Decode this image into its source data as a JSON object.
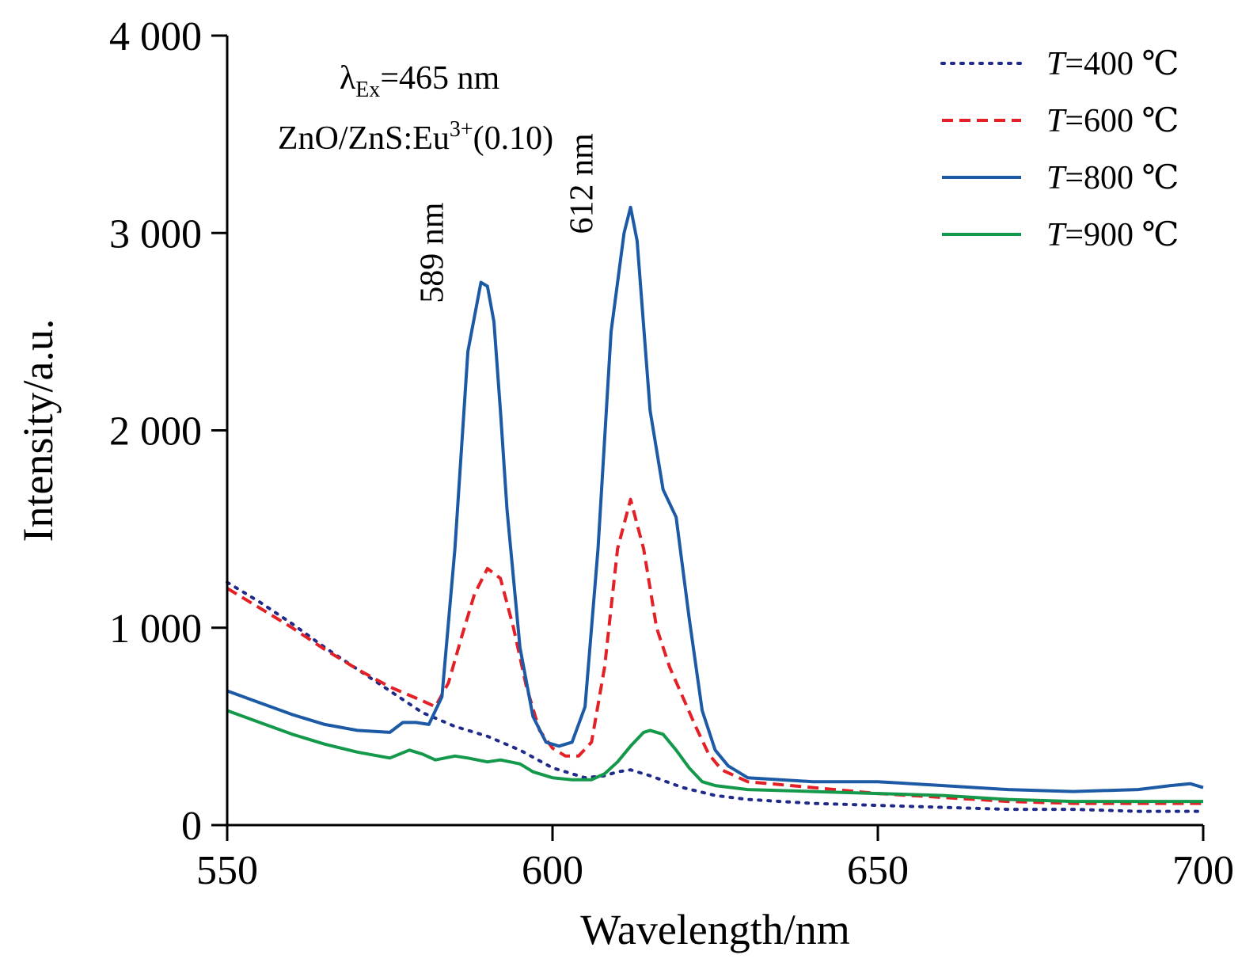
{
  "chart_data": {
    "type": "line",
    "title": "",
    "xlabel": "Wavelength/nm",
    "ylabel": "Intensity/a.u.",
    "xlim": [
      550,
      700
    ],
    "ylim": [
      0,
      4000
    ],
    "xticks": [
      550,
      600,
      650,
      700
    ],
    "xtick_labels": [
      "550",
      "600",
      "650",
      "700"
    ],
    "yticks": [
      0,
      1000,
      2000,
      3000,
      4000
    ],
    "ytick_labels": [
      "0",
      "1 000",
      "2 000",
      "3 000",
      "4 000"
    ],
    "grid": false,
    "legend_position": "top-right",
    "annotations": {
      "excitation": {
        "main": "λ",
        "sub": "Ex",
        "rest": "=465 nm"
      },
      "sample": {
        "main": "ZnO/ZnS:Eu",
        "sup": "3+",
        "rest": "(0.10)"
      },
      "peaks": [
        {
          "text": "589 nm",
          "x": 589,
          "y": 2900
        },
        {
          "text": "612 nm",
          "x": 612,
          "y": 3250
        }
      ]
    },
    "series": [
      {
        "name": "T=400 ℃",
        "legend_var": "T",
        "legend_rest": "=400 ℃",
        "color": "#1f2a8a",
        "style": "dotted",
        "x": [
          550,
          555,
          560,
          565,
          570,
          575,
          580,
          585,
          590,
          595,
          600,
          605,
          608,
          610,
          612,
          615,
          620,
          625,
          630,
          640,
          650,
          660,
          670,
          680,
          690,
          700
        ],
        "y": [
          1230,
          1130,
          1020,
          900,
          790,
          680,
          570,
          500,
          450,
          380,
          290,
          240,
          250,
          270,
          280,
          250,
          190,
          150,
          130,
          110,
          100,
          90,
          80,
          80,
          70,
          70
        ]
      },
      {
        "name": "T=600 ℃",
        "legend_var": "T",
        "legend_rest": "=600 ℃",
        "color": "#e32026",
        "style": "dashed",
        "x": [
          550,
          555,
          560,
          565,
          570,
          575,
          580,
          582,
          584,
          586,
          588,
          590,
          592,
          594,
          596,
          598,
          600,
          602,
          604,
          606,
          608,
          610,
          612,
          614,
          616,
          618,
          620,
          622,
          624,
          626,
          630,
          640,
          650,
          660,
          670,
          680,
          690,
          700
        ],
        "y": [
          1200,
          1100,
          1000,
          890,
          790,
          700,
          630,
          600,
          720,
          950,
          1170,
          1300,
          1250,
          1000,
          700,
          480,
          390,
          350,
          350,
          420,
          800,
          1400,
          1650,
          1400,
          1000,
          800,
          650,
          500,
          360,
          280,
          220,
          190,
          160,
          140,
          120,
          110,
          110,
          110
        ]
      },
      {
        "name": "T=800 ℃",
        "legend_var": "T",
        "legend_rest": "=800 ℃",
        "color": "#1c5aa6",
        "style": "solid",
        "x": [
          550,
          555,
          560,
          565,
          570,
          575,
          577,
          579,
          581,
          583,
          585,
          587,
          589,
          590,
          591,
          592,
          593,
          595,
          597,
          599,
          601,
          603,
          605,
          607,
          609,
          611,
          612,
          613,
          615,
          617,
          619,
          621,
          623,
          625,
          627,
          630,
          640,
          650,
          660,
          670,
          680,
          690,
          695,
          698,
          700
        ],
        "y": [
          680,
          620,
          560,
          510,
          480,
          470,
          520,
          520,
          510,
          650,
          1400,
          2400,
          2750,
          2730,
          2550,
          2100,
          1600,
          900,
          550,
          420,
          400,
          420,
          600,
          1400,
          2500,
          3000,
          3130,
          2960,
          2100,
          1700,
          1560,
          1050,
          580,
          380,
          300,
          240,
          220,
          220,
          200,
          180,
          170,
          180,
          200,
          210,
          190
        ]
      },
      {
        "name": "T=900 ℃",
        "legend_var": "T",
        "legend_rest": "=900 ℃",
        "color": "#14994a",
        "style": "solid",
        "x": [
          550,
          555,
          560,
          565,
          570,
          575,
          578,
          580,
          582,
          585,
          587,
          590,
          592,
          595,
          597,
          600,
          603,
          606,
          608,
          610,
          612,
          614,
          615,
          617,
          619,
          621,
          623,
          625,
          630,
          640,
          650,
          660,
          670,
          680,
          690,
          700
        ],
        "y": [
          580,
          520,
          460,
          410,
          370,
          340,
          380,
          360,
          330,
          350,
          340,
          320,
          330,
          310,
          270,
          240,
          230,
          230,
          260,
          320,
          400,
          470,
          480,
          460,
          380,
          290,
          220,
          200,
          180,
          170,
          160,
          150,
          130,
          120,
          120,
          120
        ]
      }
    ]
  }
}
